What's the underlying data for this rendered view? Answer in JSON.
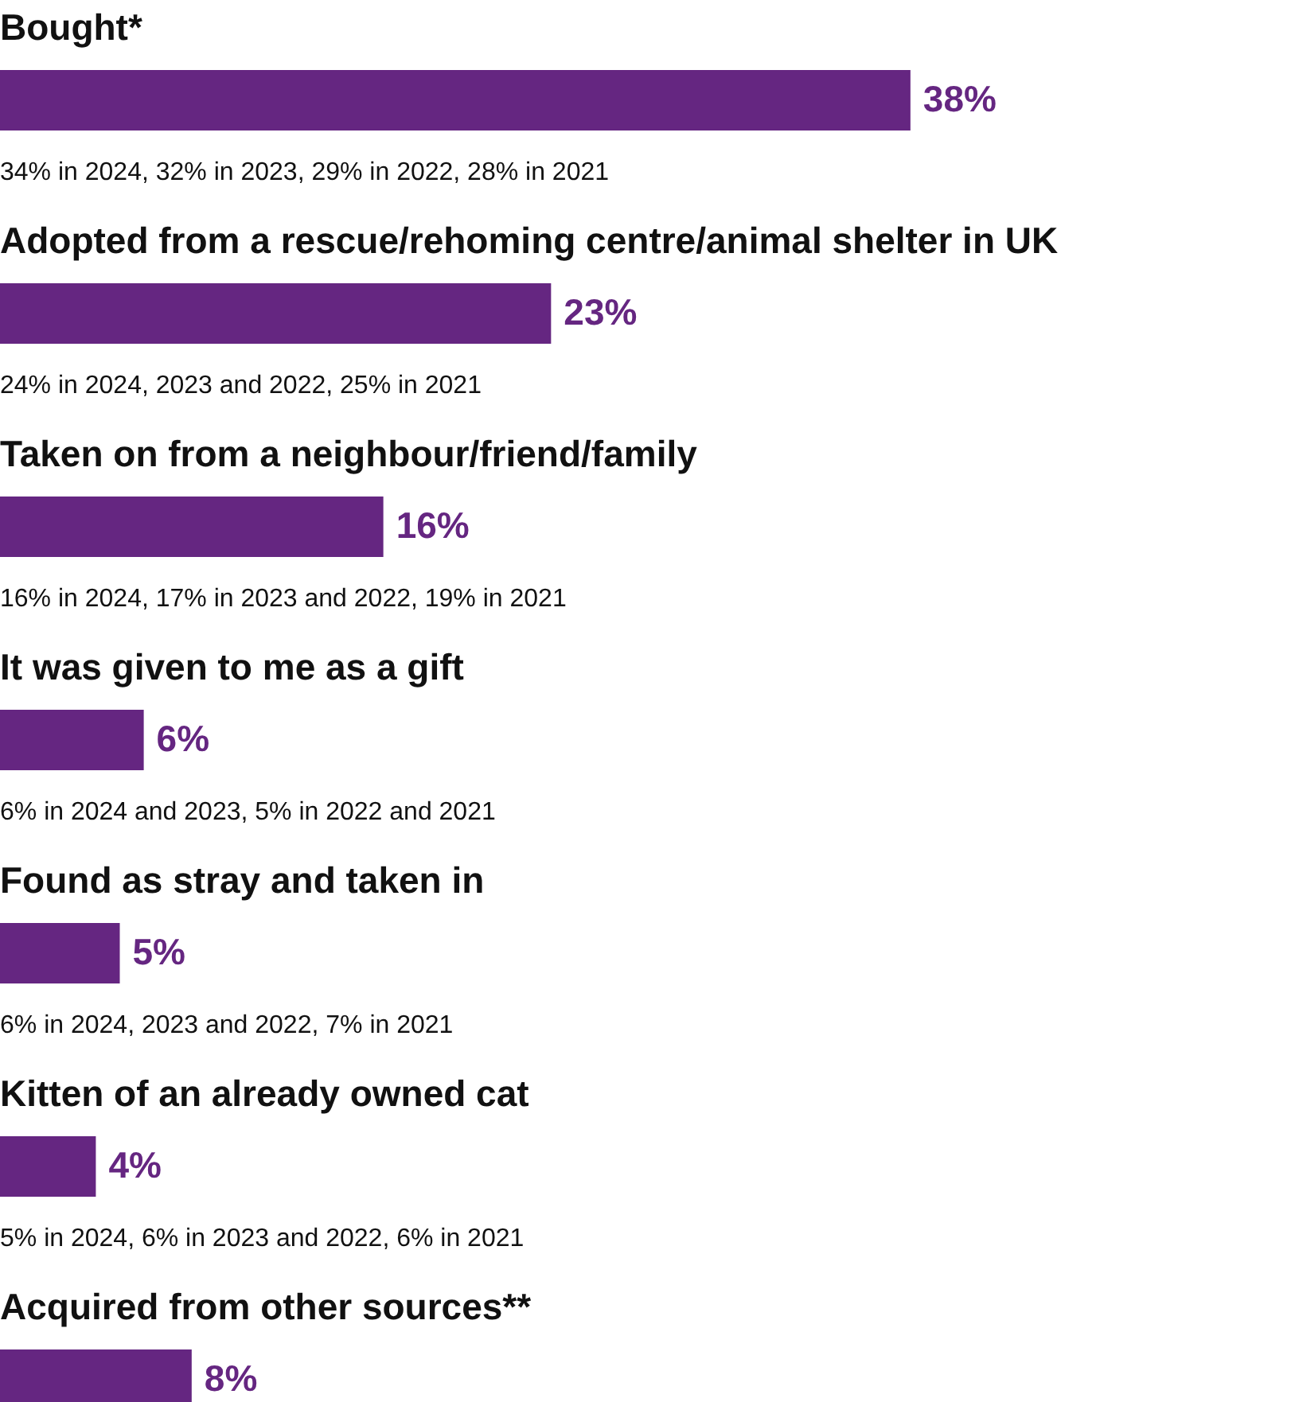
{
  "chart_data": {
    "type": "bar",
    "orientation": "horizontal",
    "categories": [
      "Bought*",
      "Adopted from a rescue/rehoming centre/animal shelter in UK",
      "Taken on from a neighbour/friend/family",
      "It was given to me as a gift",
      "Found as stray and taken in",
      "Kitten of an already owned cat",
      "Acquired from other sources**"
    ],
    "values": [
      38,
      23,
      16,
      6,
      5,
      4,
      8
    ],
    "value_labels": [
      "38%",
      "23%",
      "16%",
      "6%",
      "5%",
      "4%",
      "8%"
    ],
    "color": "#652681",
    "annotations": [
      "34% in 2024, 32% in 2023, 29% in 2022, 28% in 2021",
      "24% in 2024, 2023 and 2022, 25% in 2021",
      "16% in 2024, 17% in 2023 and 2022, 19% in 2021",
      "6% in 2024 and 2023, 5% in 2022 and 2021",
      "6% in 2024, 2023 and 2022, 7% in 2021",
      "5% in 2024, 6% in 2023 and 2022, 6% in 2021"
    ]
  }
}
